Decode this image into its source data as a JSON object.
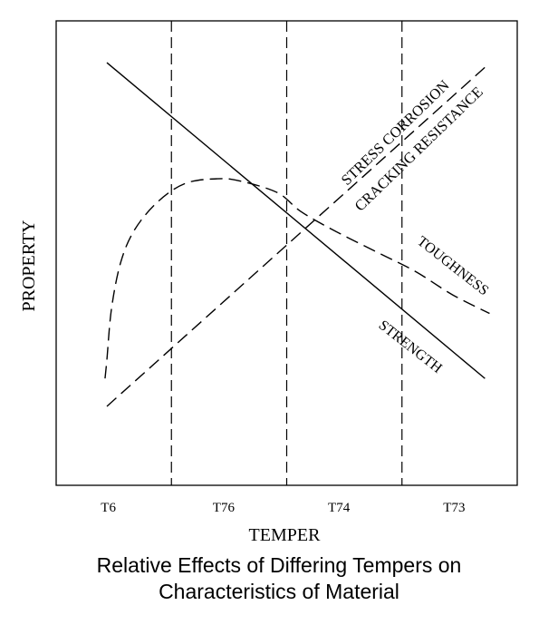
{
  "chart_data": {
    "type": "line",
    "title": "",
    "xlabel": "TEMPER",
    "ylabel": "PROPERTY",
    "categories": [
      "T6",
      "T76",
      "T74",
      "T73"
    ],
    "tempers_note_units": "relative (no numeric axis scale shown)",
    "xlim": [
      0,
      100
    ],
    "ylim": [
      0,
      100
    ],
    "grid": false,
    "separators_x": [
      25,
      50,
      75
    ],
    "series": [
      {
        "name": "STRENGTH",
        "style": "solid",
        "points": [
          [
            11,
            91
          ],
          [
            93,
            23
          ]
        ]
      },
      {
        "name": "STRESS CORROSION CRACKING RESISTANCE",
        "style": "dashed",
        "points": [
          [
            11,
            17
          ],
          [
            93,
            90
          ]
        ]
      },
      {
        "name": "TOUGHNESS",
        "style": "dashed",
        "points": [
          [
            10.6,
            23
          ],
          [
            11,
            27
          ],
          [
            12,
            38
          ],
          [
            14,
            48
          ],
          [
            17,
            55
          ],
          [
            22,
            61
          ],
          [
            28,
            65
          ],
          [
            35,
            66
          ],
          [
            40,
            65.5
          ],
          [
            48,
            63
          ],
          [
            53,
            59
          ],
          [
            60,
            55
          ],
          [
            70,
            50
          ],
          [
            78,
            46
          ],
          [
            86,
            41
          ],
          [
            94,
            37
          ]
        ]
      }
    ],
    "labels": {
      "stress_line1": "STRESS CORROSION",
      "stress_line2": "CRACKING RESISTANCE",
      "toughness": "TOUGHNESS",
      "strength": "STRENGTH"
    }
  },
  "caption": {
    "line1": "Relative Effects of Differing Tempers on",
    "line2": "Characteristics of Material"
  }
}
